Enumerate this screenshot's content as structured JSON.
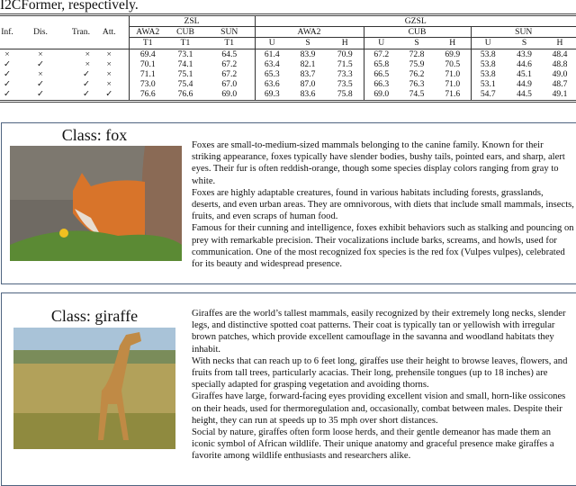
{
  "caption": "I2CFormer, respectively.",
  "table": {
    "headers": {
      "inf": "Inf.",
      "dis": "Dis.",
      "tran": "Tran.",
      "att": "Att.",
      "zsl": "ZSL",
      "gzsl": "GZSL",
      "datasets": [
        "AWA2",
        "CUB",
        "SUN"
      ],
      "t1": "T1",
      "u": "U",
      "s": "S",
      "h": "H"
    },
    "rows": [
      {
        "inf": "×",
        "dis": "×",
        "tran": "×",
        "att": "×",
        "zsl": [
          "69.4",
          "73.1",
          "64.5"
        ],
        "awa2": [
          "61.4",
          "83.9",
          "70.9"
        ],
        "cub": [
          "67.2",
          "72.8",
          "69.9"
        ],
        "sun": [
          "53.8",
          "43.9",
          "48.4"
        ]
      },
      {
        "inf": "✓",
        "dis": "✓",
        "tran": "×",
        "att": "×",
        "zsl": [
          "70.1",
          "74.1",
          "67.2"
        ],
        "awa2": [
          "63.4",
          "82.1",
          "71.5"
        ],
        "cub": [
          "65.8",
          "75.9",
          "70.5"
        ],
        "sun": [
          "53.8",
          "44.6",
          "48.8"
        ]
      },
      {
        "inf": "✓",
        "dis": "×",
        "tran": "✓",
        "att": "×",
        "zsl": [
          "71.1",
          "75.1",
          "67.2"
        ],
        "awa2": [
          "65.3",
          "83.7",
          "73.3"
        ],
        "cub": [
          "66.5",
          "76.2",
          "71.0"
        ],
        "sun": [
          "53.8",
          "45.1",
          "49.0"
        ]
      },
      {
        "inf": "✓",
        "dis": "✓",
        "tran": "✓",
        "att": "×",
        "zsl": [
          "73.0",
          "75.4",
          "67.0"
        ],
        "awa2": [
          "63.6",
          "87.0",
          "73.5"
        ],
        "cub": [
          "66.3",
          "76.3",
          "71.0"
        ],
        "sun": [
          "53.1",
          "44.9",
          "48.7"
        ]
      },
      {
        "inf": "✓",
        "dis": "✓",
        "tran": "✓",
        "att": "✓",
        "zsl": [
          "76.6",
          "76.6",
          "69.0"
        ],
        "awa2": [
          "69.3",
          "83.6",
          "75.8"
        ],
        "cub": [
          "69.0",
          "74.5",
          "71.6"
        ],
        "sun": [
          "54.7",
          "44.5",
          "49.1"
        ]
      }
    ]
  },
  "fox": {
    "title": "Class: fox",
    "paragraphs": [
      "Foxes are small-to-medium-sized mammals belonging to the canine family. Known for their striking appearance, foxes typically have slender bodies, bushy tails, pointed ears, and sharp, alert eyes. Their fur is often reddish-orange, though some species display colors ranging from gray to white.",
      "Foxes are highly adaptable creatures, found in various habitats including forests, grasslands, deserts, and even urban areas. They are omnivorous, with diets that include small mammals, insects, fruits, and even scraps of human food.",
      "Famous for their cunning and intelligence, foxes exhibit behaviors such as stalking and pouncing on prey with remarkable precision. Their vocalizations include barks, screams, and howls, used for communication. One of the most recognized fox species is the red fox (Vulpes vulpes), celebrated for its beauty and widespread presence."
    ]
  },
  "giraffe": {
    "title": "Class: giraffe",
    "paragraphs": [
      "Giraffes are the world’s tallest mammals, easily recognized by their extremely long necks, slender legs, and distinctive spotted coat patterns. Their coat is typically tan or yellowish with irregular brown patches, which provide excellent camouflage in the savanna and woodland habitats they inhabit.",
      "With necks that can reach up to 6 feet long, giraffes use their height to browse leaves, flowers, and fruits from tall trees, particularly acacias. Their long, prehensile tongues (up to 18 inches) are specially adapted for grasping vegetation and avoiding thorns.",
      "Giraffes have large, forward-facing eyes providing excellent vision and small, horn-like ossicones on their heads, used for thermoregulation and, occasionally, combat between males. Despite their height, they can run at speeds up to 35 mph over short distances.",
      "Social by nature, giraffes often form loose herds, and their gentle demeanor has made them an iconic symbol of African wildlife. Their unique anatomy and graceful presence make giraffes a favorite among wildlife enthusiasts and researchers alike."
    ]
  }
}
